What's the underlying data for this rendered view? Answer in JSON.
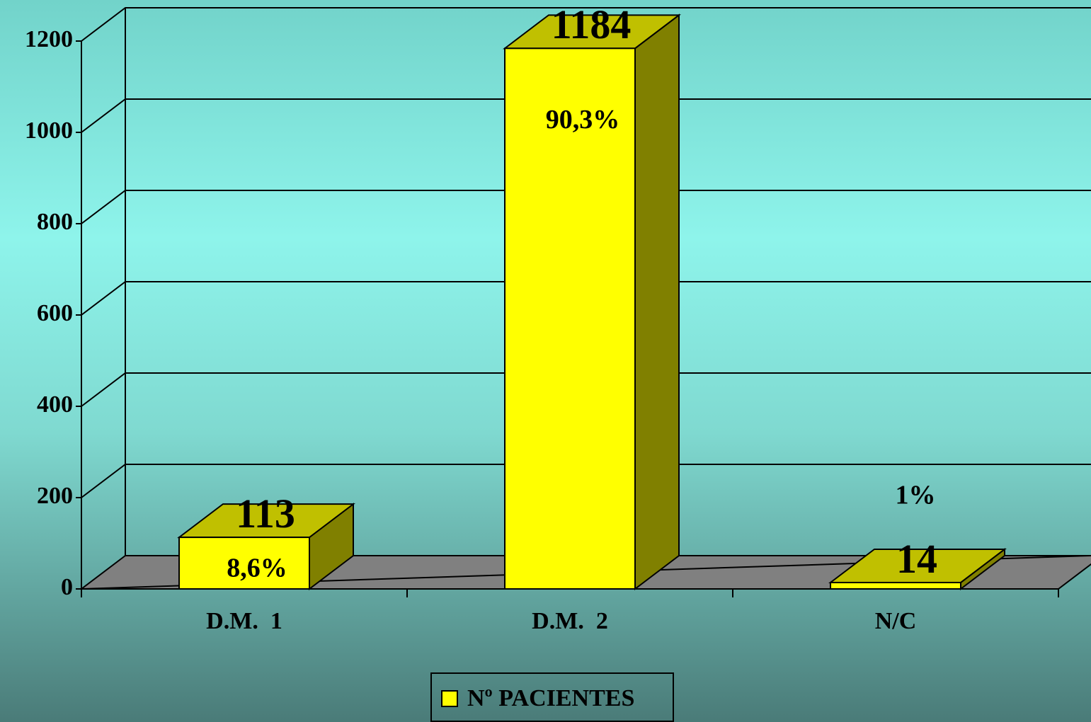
{
  "chart_data": {
    "type": "bar3d",
    "categories": [
      "D.M.  1",
      "D.M.  2",
      "N/C"
    ],
    "series": [
      {
        "name": "Nº PACIENTES",
        "color": "#ffff00",
        "values": [
          113,
          1184,
          14
        ]
      }
    ],
    "annotations": [
      "8,6%",
      "90,3%",
      "1%"
    ],
    "ylim": [
      0,
      1200
    ],
    "yticks": [
      0,
      200,
      400,
      600,
      800,
      1000,
      1200
    ],
    "grid": true,
    "legend": "bottom"
  }
}
